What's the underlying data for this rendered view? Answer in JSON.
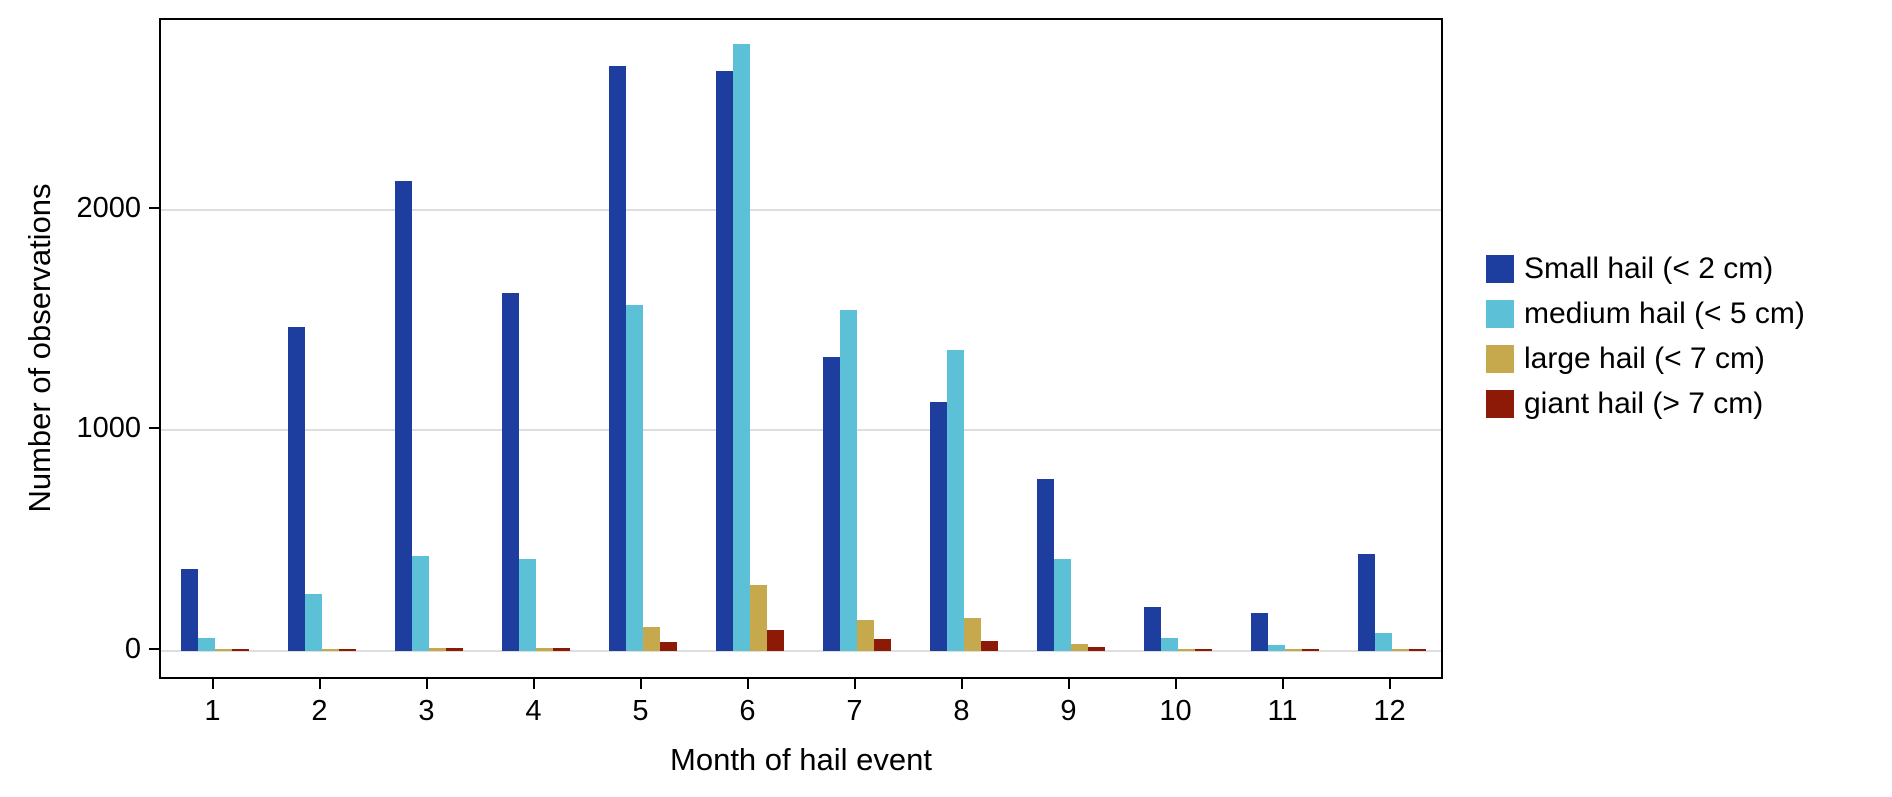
{
  "figure": {
    "x_axis_title": "Month of hail event",
    "y_axis_title": "Number of observations"
  },
  "legend": {
    "items": [
      {
        "label": "Small hail (< 2 cm)",
        "color": "#1d3e9e"
      },
      {
        "label": "medium hail (< 5 cm)",
        "color": "#5cc1d6"
      },
      {
        "label": "large hail (< 7 cm)",
        "color": "#c6a94c"
      },
      {
        "label": "giant hail (> 7 cm)",
        "color": "#8c1a06"
      }
    ]
  },
  "chart_data": {
    "type": "bar",
    "title": "",
    "xlabel": "Month of hail event",
    "ylabel": "Number of observations",
    "categories": [
      "1",
      "2",
      "3",
      "4",
      "5",
      "6",
      "7",
      "8",
      "9",
      "10",
      "11",
      "12"
    ],
    "series": [
      {
        "name": "Small hail (< 2 cm)",
        "color": "#1d3e9e",
        "values": [
          370,
          1470,
          2130,
          1620,
          2650,
          2630,
          1330,
          1130,
          780,
          200,
          170,
          440
        ]
      },
      {
        "name": "medium hail (< 5 cm)",
        "color": "#5cc1d6",
        "values": [
          60,
          260,
          430,
          415,
          1570,
          2750,
          1545,
          1365,
          415,
          60,
          25,
          80
        ]
      },
      {
        "name": "large hail (< 7 cm)",
        "color": "#c6a94c",
        "values": [
          5,
          10,
          12,
          15,
          110,
          300,
          140,
          150,
          30,
          6,
          4,
          10
        ]
      },
      {
        "name": "giant hail (> 7 cm)",
        "color": "#8c1a06",
        "values": [
          4,
          10,
          15,
          12,
          40,
          95,
          55,
          45,
          18,
          4,
          2,
          5
        ]
      }
    ],
    "ylim": [
      0,
      2860
    ],
    "yticks": [
      0,
      1000,
      2000
    ],
    "grid": "horizontal major gridlines, light gray on white",
    "legend_position": "right",
    "bar_grouping": "grouped (dodged), 4 bars per month"
  }
}
